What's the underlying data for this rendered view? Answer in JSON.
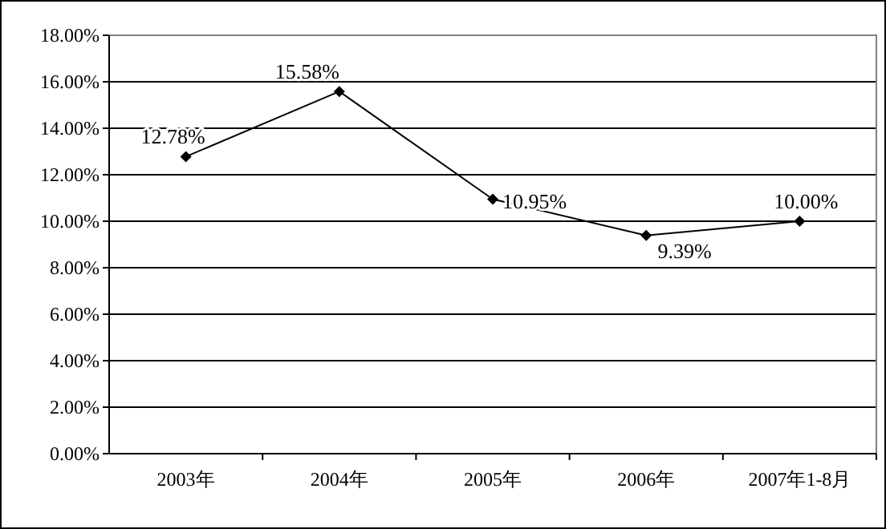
{
  "chart_data": {
    "type": "line",
    "categories": [
      "2003年",
      "2004年",
      "2005年",
      "2006年",
      "2007年1-8月"
    ],
    "series": [
      {
        "color": "#000000",
        "values": [
          12.78,
          15.58,
          10.95,
          9.39,
          10.0
        ],
        "value_labels": [
          "12.78%",
          "15.58%",
          "10.95%",
          "9.39%",
          "10.00%"
        ]
      }
    ],
    "ylim": [
      0,
      18
    ],
    "yticks": [
      {
        "value": 0,
        "label": "0.00%"
      },
      {
        "value": 2,
        "label": "2.00%"
      },
      {
        "value": 4,
        "label": "4.00%"
      },
      {
        "value": 6,
        "label": "6.00%"
      },
      {
        "value": 8,
        "label": "8.00%"
      },
      {
        "value": 10,
        "label": "10.00%"
      },
      {
        "value": 12,
        "label": "12.00%"
      },
      {
        "value": 14,
        "label": "14.00%"
      },
      {
        "value": 16,
        "label": "16.00%"
      },
      {
        "value": 18,
        "label": "18.00%"
      }
    ],
    "grid": "y",
    "marker": "diamond",
    "line_style": "solid"
  }
}
